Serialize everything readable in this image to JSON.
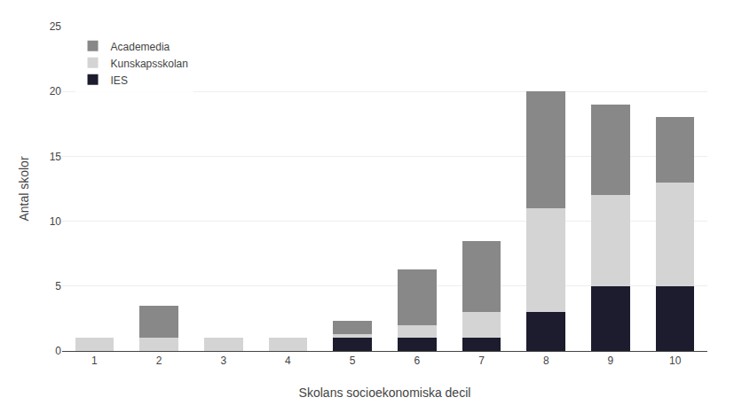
{
  "chart_data": {
    "type": "bar",
    "stacked": true,
    "categories": [
      1,
      2,
      3,
      4,
      5,
      6,
      7,
      8,
      9,
      10
    ],
    "series": [
      {
        "name": "IES",
        "color": "#1c1c2e",
        "values": [
          0,
          0,
          0,
          0,
          1,
          1,
          1,
          3,
          5,
          5
        ]
      },
      {
        "name": "Kunskapsskolan",
        "color": "#d4d4d4",
        "values": [
          1,
          1,
          1,
          1,
          0.3,
          1,
          2,
          8,
          7,
          8
        ]
      },
      {
        "name": "Academedia",
        "color": "#888888",
        "values": [
          0,
          2.5,
          0,
          0,
          1,
          4.3,
          5.5,
          9,
          7,
          5
        ]
      }
    ],
    "xlabel": "Skolans socioekonomiska decil",
    "ylabel": "Antal skolor",
    "ylim": [
      0,
      25
    ],
    "yticks": [
      0,
      5,
      10,
      15,
      20,
      25
    ],
    "grid": true,
    "legend": "upper left"
  }
}
